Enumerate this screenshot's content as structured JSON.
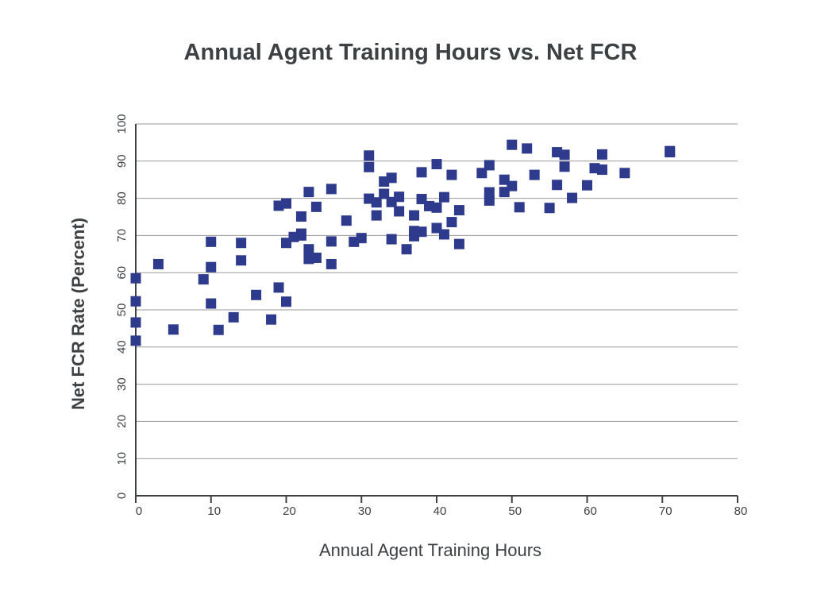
{
  "chart_data": {
    "type": "scatter",
    "title": "Annual Agent Training Hours vs. Net FCR",
    "xlabel": "Annual Agent Training Hours",
    "ylabel": "Net FCR Rate (Percent)",
    "xlim": [
      0,
      80
    ],
    "ylim": [
      0,
      100
    ],
    "xticks": [
      0,
      10,
      20,
      30,
      40,
      50,
      60,
      70,
      80
    ],
    "yticks": [
      0,
      10,
      20,
      30,
      40,
      50,
      60,
      70,
      80,
      90,
      100
    ],
    "grid": "horizontal",
    "marker_color": "#2e3b8c",
    "points": [
      [
        0,
        58.5
      ],
      [
        0,
        52.3
      ],
      [
        0,
        46.6
      ],
      [
        0,
        41.7
      ],
      [
        3,
        62.3
      ],
      [
        5,
        44.7
      ],
      [
        9,
        58.2
      ],
      [
        10,
        68.3
      ],
      [
        10,
        61.5
      ],
      [
        10,
        51.7
      ],
      [
        11,
        44.6
      ],
      [
        13,
        48
      ],
      [
        14,
        68
      ],
      [
        14,
        63.3
      ],
      [
        16,
        54
      ],
      [
        18,
        47.4
      ],
      [
        19,
        78
      ],
      [
        19,
        56
      ],
      [
        20,
        78.6
      ],
      [
        20,
        68
      ],
      [
        20,
        52.2
      ],
      [
        21,
        69.6
      ],
      [
        22,
        75.1
      ],
      [
        22,
        70.5
      ],
      [
        22,
        70
      ],
      [
        23,
        81.7
      ],
      [
        23,
        66.3
      ],
      [
        23,
        63.7
      ],
      [
        24,
        77.7
      ],
      [
        24,
        64
      ],
      [
        26,
        82.5
      ],
      [
        26,
        68.4
      ],
      [
        26,
        62.3
      ],
      [
        28,
        74
      ],
      [
        29,
        68.3
      ],
      [
        30,
        69.3
      ],
      [
        31,
        91.5
      ],
      [
        31,
        88.4
      ],
      [
        31,
        79.9
      ],
      [
        32,
        78.9
      ],
      [
        32,
        75.4
      ],
      [
        33,
        84.5
      ],
      [
        33,
        81.2
      ],
      [
        34,
        85.5
      ],
      [
        34,
        79
      ],
      [
        34,
        69
      ],
      [
        35,
        80.4
      ],
      [
        35,
        76.5
      ],
      [
        36,
        66.3
      ],
      [
        37,
        75.4
      ],
      [
        37,
        71.2
      ],
      [
        37,
        69.8
      ],
      [
        38,
        87
      ],
      [
        38,
        79.8
      ],
      [
        38,
        71
      ],
      [
        39,
        77.9
      ],
      [
        40,
        89.2
      ],
      [
        40,
        77.5
      ],
      [
        40,
        72
      ],
      [
        41,
        80.3
      ],
      [
        41,
        70.3
      ],
      [
        42,
        86.3
      ],
      [
        42,
        73.6
      ],
      [
        43,
        76.8
      ],
      [
        43,
        67.7
      ],
      [
        46,
        86.8
      ],
      [
        47,
        88.9
      ],
      [
        47,
        81.6
      ],
      [
        47,
        79.4
      ],
      [
        49,
        85
      ],
      [
        49,
        81.7
      ],
      [
        50,
        94.4
      ],
      [
        50,
        83.3
      ],
      [
        51,
        77.6
      ],
      [
        52,
        93.4
      ],
      [
        53,
        86.3
      ],
      [
        55,
        77.4
      ],
      [
        56,
        92.4
      ],
      [
        56,
        83.6
      ],
      [
        57,
        91.7
      ],
      [
        57,
        88.5
      ],
      [
        58,
        80.1
      ],
      [
        60,
        83.5
      ],
      [
        61,
        88.1
      ],
      [
        62,
        91.8
      ],
      [
        62,
        87.7
      ],
      [
        65,
        86.8
      ],
      [
        71,
        92.7
      ],
      [
        71,
        92.4
      ]
    ]
  }
}
